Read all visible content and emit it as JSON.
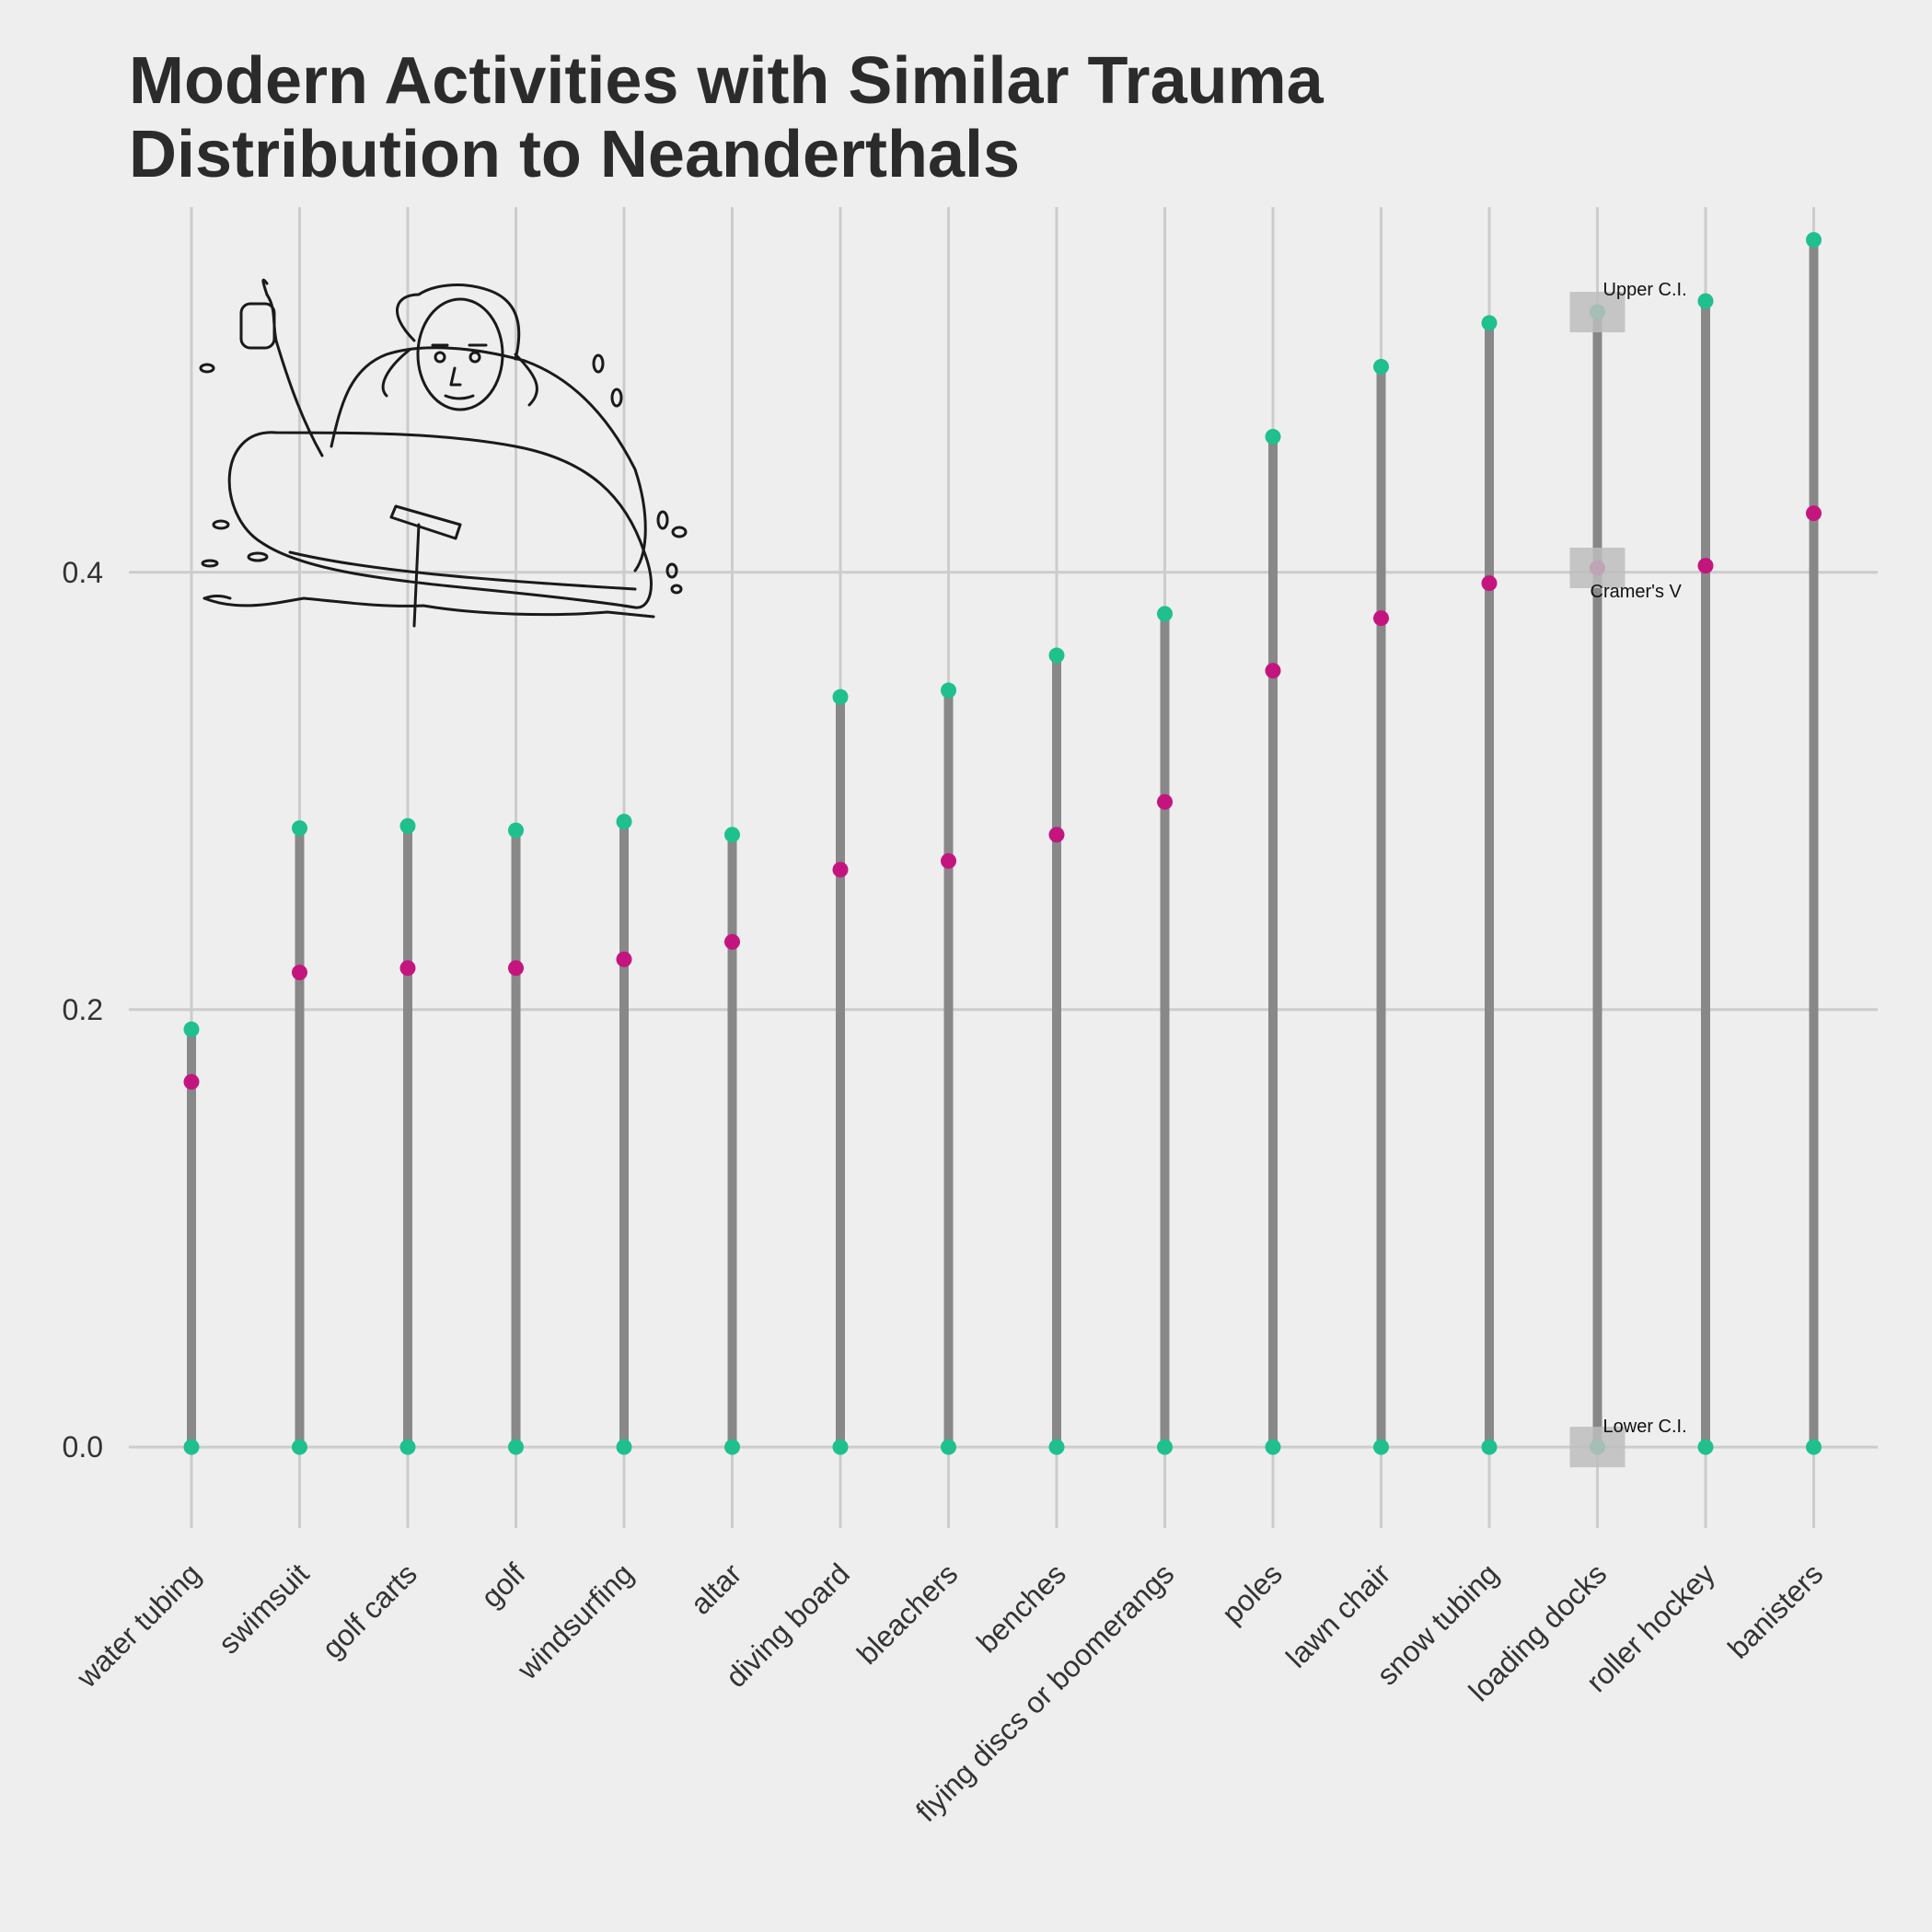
{
  "chart_data": {
    "type": "dot-range",
    "title_lines": [
      "Modern Activities with Similar Trauma",
      "Distribution to Neanderthals"
    ],
    "xlabel": "",
    "ylabel": "",
    "categories": [
      "water tubing",
      "swimsuit",
      "golf carts",
      "golf",
      "windsurfing",
      "altar",
      "diving board",
      "bleachers",
      "benches",
      "flying discs or boomerangs",
      "poles",
      "lawn chair",
      "snow tubing",
      "loading docks",
      "roller hockey",
      "banisters"
    ],
    "series": [
      {
        "name": "Lower C.I.",
        "values": [
          0,
          0,
          0,
          0,
          0,
          0,
          0,
          0,
          0,
          0,
          0,
          0,
          0,
          0,
          0,
          0
        ]
      },
      {
        "name": "Cramer's V",
        "values": [
          0.167,
          0.217,
          0.219,
          0.219,
          0.223,
          0.231,
          0.264,
          0.268,
          0.28,
          0.295,
          0.355,
          0.379,
          0.395,
          0.402,
          0.403,
          0.427
        ]
      },
      {
        "name": "Upper C.I.",
        "values": [
          0.191,
          0.283,
          0.284,
          0.282,
          0.286,
          0.28,
          0.343,
          0.346,
          0.362,
          0.381,
          0.462,
          0.494,
          0.514,
          0.519,
          0.524,
          0.552
        ]
      }
    ],
    "ylim": [
      -0.037,
      0.567
    ],
    "yticks": [
      0.0,
      0.2,
      0.4
    ],
    "ytick_labels": [
      "0.0",
      "0.2",
      "0.4"
    ],
    "grid": true,
    "legend": "inline annotations on loading docks",
    "annotation_labels": {
      "upper": "Upper C.I.",
      "estimate": "Cramer's V",
      "lower": "Lower C.I."
    },
    "annotation_category": "loading docks",
    "colors": {
      "bounds": "#1fc08e",
      "estimate": "#c4157f",
      "range": "#888888",
      "grid": "#cccccc",
      "annotation_box": "#bdbdbd"
    },
    "illustration": "neanderthal-water-tubing-sketch"
  }
}
